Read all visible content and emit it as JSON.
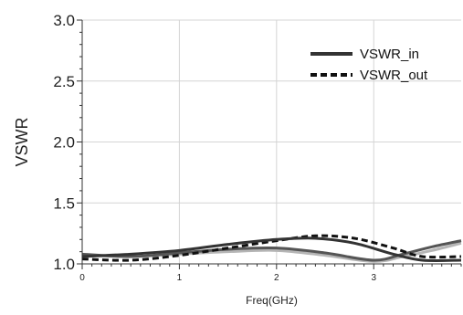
{
  "chart_data": {
    "type": "line",
    "title": "",
    "xlabel": "Freq(GHz)",
    "ylabel": "VSWR",
    "xlim": [
      0,
      3.9
    ],
    "ylim": [
      1.0,
      3.0
    ],
    "xticks": [
      0,
      1,
      2,
      3
    ],
    "xtick_labels": [
      "0",
      "1",
      "2",
      "3"
    ],
    "yticks": [
      1.0,
      1.5,
      2.0,
      2.5,
      3.0
    ],
    "ytick_labels": [
      "1.0",
      "1.5",
      "2.0",
      "2.5",
      "3.0"
    ],
    "grid": true,
    "legend_position": "top-right",
    "series": [
      {
        "name": "VSWR_in",
        "style": "solid",
        "color": "#333333",
        "x": [
          0,
          0.5,
          1.0,
          1.5,
          2.0,
          2.4,
          2.8,
          3.2,
          3.5,
          3.9
        ],
        "y": [
          1.06,
          1.08,
          1.11,
          1.16,
          1.2,
          1.21,
          1.17,
          1.08,
          1.03,
          1.03
        ]
      },
      {
        "name": "VSWR_out",
        "style": "dashed",
        "color": "#111111",
        "x": [
          0,
          0.5,
          1.0,
          1.5,
          2.0,
          2.4,
          2.8,
          3.2,
          3.5,
          3.9
        ],
        "y": [
          1.04,
          1.03,
          1.07,
          1.13,
          1.19,
          1.23,
          1.21,
          1.13,
          1.06,
          1.06
        ]
      },
      {
        "name": "",
        "style": "solid",
        "color": "#555555",
        "x": [
          0,
          0.5,
          1.0,
          1.5,
          2.0,
          2.5,
          3.0,
          3.3,
          3.6,
          3.9
        ],
        "y": [
          1.08,
          1.06,
          1.09,
          1.12,
          1.13,
          1.09,
          1.03,
          1.08,
          1.14,
          1.19
        ]
      },
      {
        "name": "",
        "style": "solid",
        "color": "#b5b5b5",
        "x": [
          0,
          0.5,
          1.0,
          1.5,
          2.0,
          2.5,
          3.0,
          3.3,
          3.6,
          3.9
        ],
        "y": [
          1.07,
          1.06,
          1.08,
          1.1,
          1.11,
          1.07,
          1.02,
          1.06,
          1.11,
          1.17
        ]
      }
    ]
  }
}
